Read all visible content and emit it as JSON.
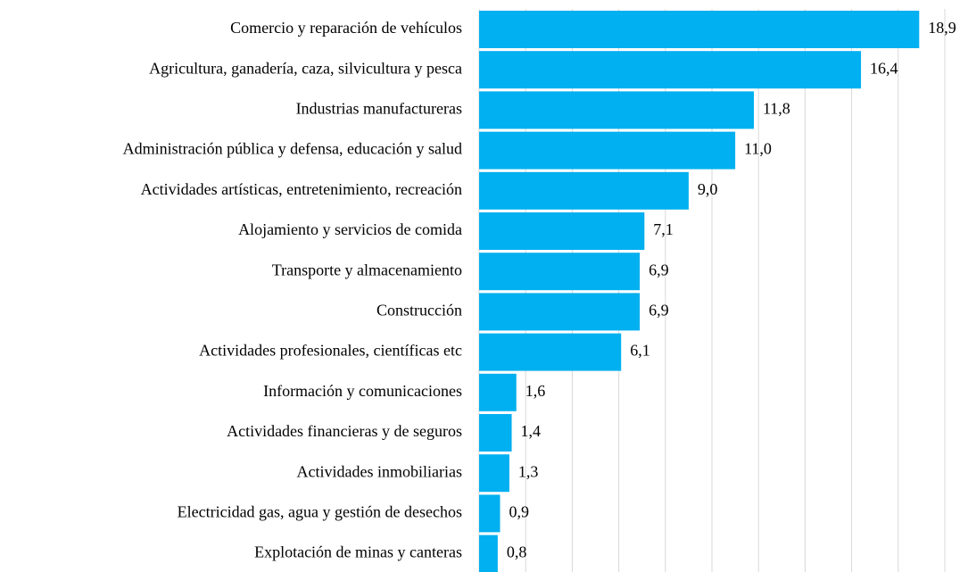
{
  "chart_data": {
    "type": "bar",
    "orientation": "horizontal",
    "categories": [
      "Comercio y reparación de vehículos",
      "Agricultura, ganadería, caza, silvicultura y pesca",
      "Industrias manufactureras",
      "Administración pública y defensa, educación y salud",
      "Actividades artísticas, entretenimiento, recreación",
      "Alojamiento y servicios de comida",
      "Transporte y almacenamiento",
      "Construcción",
      "Actividades profesionales, científicas etc",
      "Información y comunicaciones",
      "Actividades financieras y de seguros",
      "Actividades inmobiliarias",
      "Electricidad gas, agua y gestión de desechos",
      "Explotación de minas y canteras"
    ],
    "values": [
      18.9,
      16.4,
      11.8,
      11.0,
      9.0,
      7.1,
      6.9,
      6.9,
      6.1,
      1.6,
      1.4,
      1.3,
      0.9,
      0.8
    ],
    "value_labels": [
      "18,9",
      "16,4",
      "11,8",
      "11,0",
      "9,0",
      "7,1",
      "6,9",
      "6,9",
      "6,1",
      "1,6",
      "1,4",
      "1,3",
      "0,9",
      "0,8"
    ],
    "color": "#00b0f0",
    "xlim": [
      0,
      20
    ],
    "xticks": [
      0,
      2,
      4,
      6,
      8,
      10,
      12,
      14,
      16,
      18,
      20
    ],
    "grid": true
  }
}
